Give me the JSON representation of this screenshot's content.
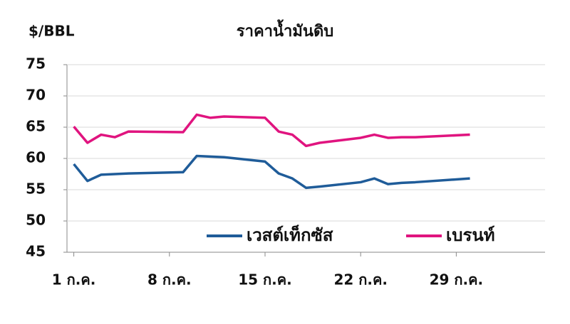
{
  "chart_data": {
    "type": "line",
    "title": "ราคาน้ำมันดิบ",
    "y_label": "$/BBL",
    "x": [
      1,
      2,
      3,
      4,
      5,
      9,
      10,
      11,
      12,
      15,
      16,
      17,
      18,
      19,
      22,
      23,
      24,
      25,
      26,
      30
    ],
    "series": [
      {
        "name": "เวสต์เท็กซัส",
        "color": "#1f5c99",
        "values": [
          59.1,
          56.4,
          57.4,
          57.5,
          57.6,
          57.8,
          60.4,
          60.3,
          60.2,
          59.5,
          57.6,
          56.8,
          55.3,
          55.5,
          56.2,
          56.8,
          55.9,
          56.1,
          56.2,
          56.8
        ]
      },
      {
        "name": "เบรนท์",
        "color": "#e0147f",
        "values": [
          65.1,
          62.5,
          63.8,
          63.4,
          64.3,
          64.2,
          67.0,
          66.5,
          66.7,
          66.5,
          64.3,
          63.8,
          62.0,
          62.5,
          63.3,
          63.8,
          63.3,
          63.4,
          63.4,
          63.8
        ]
      }
    ],
    "xlim": [
      0.5,
      35.5
    ],
    "xticks": [
      {
        "value": 1,
        "label": "1 ก.ค."
      },
      {
        "value": 8,
        "label": "8 ก.ค."
      },
      {
        "value": 15,
        "label": "15 ก.ค."
      },
      {
        "value": 22,
        "label": "22 ก.ค."
      },
      {
        "value": 29,
        "label": "29 ก.ค."
      }
    ],
    "ylim": [
      45,
      75
    ],
    "yticks": [
      45,
      50,
      55,
      60,
      65,
      70,
      75
    ],
    "grid": true
  }
}
